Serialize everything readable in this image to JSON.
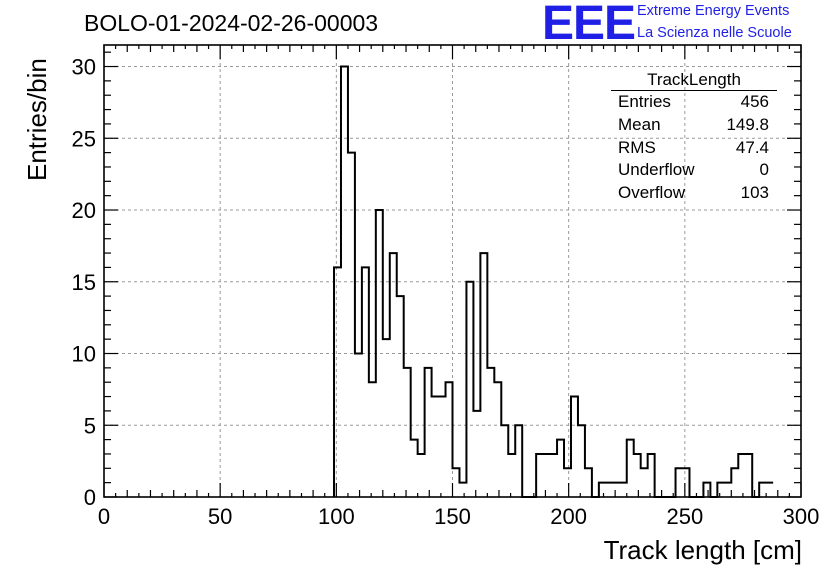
{
  "header": {
    "title": "BOLO-01-2024-02-26-00003",
    "logo_text": "EEE",
    "logo_line1": "Extreme Energy Events",
    "logo_line2": "La Scienza nelle Scuole",
    "logo_color": "#1f1fe6"
  },
  "stats": {
    "name": "TrackLength",
    "rows": [
      {
        "label": "Entries",
        "value": "456"
      },
      {
        "label": "Mean",
        "value": "149.8"
      },
      {
        "label": "RMS",
        "value": "47.4"
      },
      {
        "label": "Underflow",
        "value": "0"
      },
      {
        "label": "Overflow",
        "value": "103"
      }
    ]
  },
  "chart_data": {
    "type": "histogram",
    "title": "BOLO-01-2024-02-26-00003",
    "xlabel": "Track length [cm]",
    "ylabel": "Entries/bin",
    "xlim": [
      0,
      300
    ],
    "ylim": [
      0,
      31.5
    ],
    "bin_width": 3,
    "grid": true,
    "x_ticks": [
      0,
      50,
      100,
      150,
      200,
      250,
      300
    ],
    "y_ticks": [
      0,
      5,
      10,
      15,
      20,
      25,
      30
    ],
    "bin_edges_start": 99,
    "values": [
      16,
      30,
      24,
      10,
      16,
      8,
      20,
      11,
      17,
      14,
      9,
      4,
      3,
      9,
      7,
      7,
      8,
      2,
      1,
      15,
      6,
      17,
      9,
      8,
      5,
      3,
      5,
      0,
      0,
      3,
      3,
      3,
      4,
      2,
      7,
      5,
      2,
      0,
      1,
      1,
      1,
      1,
      4,
      3,
      2,
      3,
      0,
      0,
      0,
      2,
      2,
      0,
      0,
      1,
      0,
      1,
      1,
      2,
      3,
      3,
      0,
      1,
      1
    ]
  }
}
